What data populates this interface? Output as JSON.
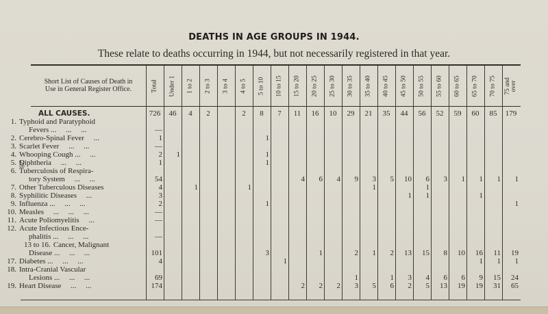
{
  "page": {
    "title": "DEATHS IN AGE GROUPS IN 1944.",
    "subtitle": "These relate to deaths occurring in 1944, but not necessarily registered in that year.",
    "page_number": "28"
  },
  "table": {
    "label_header": "Short List of Causes of Death in Use in General Register Office.",
    "label_header_lines": [
      "Short List of Causes of Death in",
      "Use in General Register Office."
    ],
    "columns": [
      "Total",
      "Under 1",
      "1 to 2",
      "2 to 3",
      "3 to 4",
      "4 to 5",
      "5 to 10",
      "10 to 15",
      "15 to 20",
      "20 to 25",
      "25 to 30",
      "30 to 35",
      "35 to 40",
      "40 to 45",
      "45 to 50",
      "50 to 55",
      "55 to 60",
      "60 to 65",
      "65 to 70",
      "70 to 75",
      "75 and over"
    ],
    "rows": [
      {
        "num": "",
        "label": "ALL CAUSES.",
        "cont": "",
        "values": [
          "726",
          "46",
          "4",
          "2",
          "",
          "2",
          "8",
          "7",
          "11",
          "16",
          "10",
          "29",
          "21",
          "35",
          "44",
          "56",
          "52",
          "59",
          "60",
          "85",
          "179"
        ]
      },
      {
        "num": "1.",
        "label": "Typhoid and Paratyphoid",
        "cont": "Fevers ...     ...     ...",
        "values": [
          "—",
          "",
          "",
          "",
          "",
          "",
          "",
          "",
          "",
          "",
          "",
          "",
          "",
          "",
          "",
          "",
          "",
          "",
          "",
          "",
          ""
        ]
      },
      {
        "num": "2.",
        "label": "Cerebro-Spinal Fever     ...",
        "cont": "",
        "values": [
          "1",
          "",
          "",
          "",
          "",
          "",
          "1",
          "",
          "",
          "",
          "",
          "",
          "",
          "",
          "",
          "",
          "",
          "",
          "",
          "",
          ""
        ]
      },
      {
        "num": "3.",
        "label": "Scarlet Fever     ...     ...",
        "cont": "",
        "values": [
          "—",
          "",
          "",
          "",
          "",
          "",
          "",
          "",
          "",
          "",
          "",
          "",
          "",
          "",
          "",
          "",
          "",
          "",
          "",
          "",
          ""
        ]
      },
      {
        "num": "4.",
        "label": "Whooping Cough ...     ...",
        "cont": "",
        "values": [
          "2",
          "1",
          "",
          "",
          "",
          "",
          "1",
          "",
          "",
          "",
          "",
          "",
          "",
          "",
          "",
          "",
          "",
          "",
          "",
          "",
          ""
        ]
      },
      {
        "num": "5.",
        "label": "Diphtheria     ...     ...",
        "cont": "",
        "values": [
          "1",
          "",
          "",
          "",
          "",
          "",
          "1",
          "",
          "",
          "",
          "",
          "",
          "",
          "",
          "",
          "",
          "",
          "",
          "",
          "",
          ""
        ]
      },
      {
        "num": "6.",
        "label": "Tuberculosis of Respira-",
        "cont": "tory System     ...     ...",
        "values": [
          "54",
          "",
          "",
          "",
          "",
          "",
          "",
          "",
          "4",
          "6",
          "4",
          "9",
          "3",
          "5",
          "10",
          "6",
          "3",
          "1",
          "1",
          "1",
          "1"
        ]
      },
      {
        "num": "7.",
        "label": "Other Tuberculous Diseases",
        "cont": "",
        "values": [
          "4",
          "",
          "1",
          "",
          "",
          "1",
          "",
          "",
          "",
          "",
          "",
          "",
          "1",
          "",
          "",
          "1",
          "",
          "",
          "",
          "",
          ""
        ]
      },
      {
        "num": "8.",
        "label": "Syphilitic Diseases     ...",
        "cont": "",
        "values": [
          "3",
          "",
          "",
          "",
          "",
          "",
          "",
          "",
          "",
          "",
          "",
          "",
          "",
          "",
          "1",
          "1",
          "",
          "",
          "1",
          "",
          ""
        ]
      },
      {
        "num": "9.",
        "label": "Influenza ...     ...     ...",
        "cont": "",
        "values": [
          "2",
          "",
          "",
          "",
          "",
          "",
          "1",
          "",
          "",
          "",
          "",
          "",
          "",
          "",
          "",
          "",
          "",
          "",
          "",
          "",
          "1"
        ]
      },
      {
        "num": "10.",
        "label": "Measles     ...     ...     ...",
        "cont": "",
        "values": [
          "—",
          "",
          "",
          "",
          "",
          "",
          "",
          "",
          "",
          "",
          "",
          "",
          "",
          "",
          "",
          "",
          "",
          "",
          "",
          "",
          ""
        ]
      },
      {
        "num": "11.",
        "label": "Acute Poliomyelitis     ...",
        "cont": "",
        "values": [
          "—",
          "",
          "",
          "",
          "",
          "",
          "",
          "",
          "",
          "",
          "",
          "",
          "",
          "",
          "",
          "",
          "",
          "",
          "",
          "",
          ""
        ]
      },
      {
        "num": "12.",
        "label": "Acute Infectious Ence-",
        "cont": "phalitis ...     ...     ...",
        "values": [
          "—",
          "",
          "",
          "",
          "",
          "",
          "",
          "",
          "",
          "",
          "",
          "",
          "",
          "",
          "",
          "",
          "",
          "",
          "",
          "",
          ""
        ]
      },
      {
        "num": "13 to 16.",
        "label": "Cancer, Malignant",
        "cont": "Disease ...     ...     ...",
        "values": [
          "101",
          "",
          "",
          "",
          "",
          "",
          "3",
          "",
          "",
          "1",
          "",
          "2",
          "1",
          "2",
          "13",
          "15",
          "8",
          "10",
          "16",
          "11",
          "19"
        ]
      },
      {
        "num": "17.",
        "label": "Diabetes ...     ...     ...",
        "cont": "",
        "values": [
          "4",
          "",
          "",
          "",
          "",
          "",
          "",
          "1",
          "",
          "",
          "",
          "",
          "",
          "",
          "",
          "",
          "",
          "",
          "1",
          "1",
          "1"
        ]
      },
      {
        "num": "18.",
        "label": "Intra-Cranial Vascular",
        "cont": "Lesions ...     ...     ...",
        "values": [
          "69",
          "",
          "",
          "",
          "",
          "",
          "",
          "",
          "",
          "",
          "",
          "1",
          "",
          "1",
          "3",
          "4",
          "6",
          "6",
          "9",
          "15",
          "24"
        ]
      },
      {
        "num": "19.",
        "label": "Heart Disease     ...     ...",
        "cont": "",
        "values": [
          "174",
          "",
          "",
          "",
          "",
          "",
          "",
          "",
          "2",
          "2",
          "2",
          "3",
          "5",
          "6",
          "2",
          "5",
          "13",
          "19",
          "19",
          "31",
          "65"
        ]
      }
    ]
  }
}
